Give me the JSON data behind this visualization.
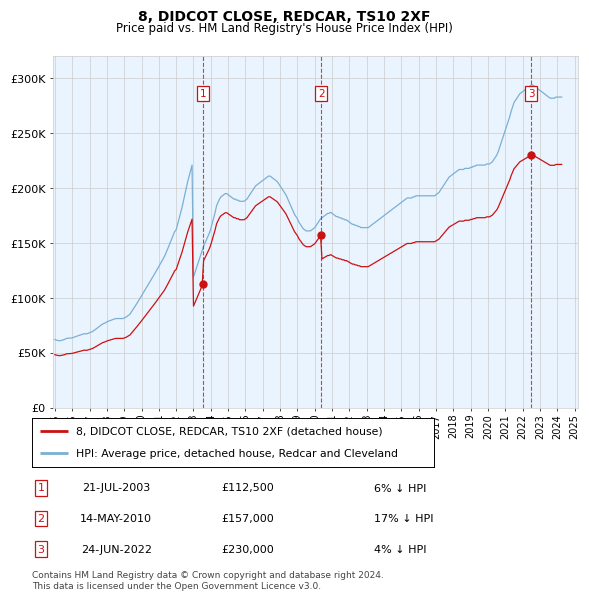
{
  "title": "8, DIDCOT CLOSE, REDCAR, TS10 2XF",
  "subtitle": "Price paid vs. HM Land Registry's House Price Index (HPI)",
  "ylim": [
    0,
    320000
  ],
  "yticks": [
    0,
    50000,
    100000,
    150000,
    200000,
    250000,
    300000
  ],
  "ytick_labels": [
    "£0",
    "£50K",
    "£100K",
    "£150K",
    "£200K",
    "£250K",
    "£300K"
  ],
  "hpi_color": "#7bafd4",
  "price_color": "#cc1111",
  "bg_color": "#ffffff",
  "grid_color": "#cccccc",
  "shade_color": "#ddeeff",
  "transactions": [
    {
      "label": "1",
      "date_x": 2003.538,
      "price": 112500,
      "text": "21-JUL-2003",
      "amount": "£112,500",
      "pct": "6% ↓ HPI"
    },
    {
      "label": "2",
      "date_x": 2010.37,
      "price": 157000,
      "text": "14-MAY-2010",
      "amount": "£157,000",
      "pct": "17% ↓ HPI"
    },
    {
      "label": "3",
      "date_x": 2022.479,
      "price": 230000,
      "text": "24-JUN-2022",
      "amount": "£230,000",
      "pct": "4% ↓ HPI"
    }
  ],
  "legend_entries": [
    {
      "label": "8, DIDCOT CLOSE, REDCAR, TS10 2XF (detached house)",
      "color": "#cc1111"
    },
    {
      "label": "HPI: Average price, detached house, Redcar and Cleveland",
      "color": "#7bafd4"
    }
  ],
  "footer": "Contains HM Land Registry data © Crown copyright and database right 2024.\nThis data is licensed under the Open Government Licence v3.0.",
  "xlim": [
    1994.9,
    2025.2
  ],
  "xtick_years": [
    1995,
    1996,
    1997,
    1998,
    1999,
    2000,
    2001,
    2002,
    2003,
    2004,
    2005,
    2006,
    2007,
    2008,
    2009,
    2010,
    2011,
    2012,
    2013,
    2014,
    2015,
    2016,
    2017,
    2018,
    2019,
    2020,
    2021,
    2022,
    2023,
    2024,
    2025
  ],
  "hpi_data_monthly": {
    "start_year": 1995.0,
    "step": 0.08333,
    "values": [
      62000,
      61500,
      61200,
      60800,
      61000,
      61300,
      61800,
      62200,
      63000,
      63100,
      63200,
      63300,
      63500,
      64000,
      64600,
      65100,
      65400,
      65800,
      66300,
      66700,
      67200,
      67300,
      67100,
      67600,
      68100,
      68700,
      69200,
      70100,
      71100,
      72100,
      73200,
      74200,
      75200,
      76100,
      76700,
      77200,
      78100,
      78600,
      79100,
      79600,
      80100,
      80600,
      81100,
      81100,
      81100,
      81100,
      81100,
      81100,
      81600,
      82100,
      83100,
      84100,
      85100,
      87100,
      89100,
      91100,
      93200,
      95300,
      97400,
      99600,
      101800,
      103900,
      106100,
      108300,
      110500,
      112700,
      114900,
      117100,
      119400,
      121600,
      123900,
      126200,
      128500,
      130900,
      133200,
      135600,
      138000,
      141000,
      144200,
      147400,
      150700,
      153900,
      157200,
      160500,
      162000,
      167000,
      172000,
      177000,
      182000,
      188000,
      194000,
      200000,
      206000,
      211000,
      216000,
      221000,
      119000,
      123000,
      127000,
      131000,
      135000,
      139000,
      143000,
      147000,
      150000,
      153000,
      156000,
      159000,
      163000,
      168000,
      173000,
      178000,
      184000,
      187000,
      190000,
      192000,
      193000,
      194000,
      195000,
      195000,
      194000,
      193000,
      192000,
      191000,
      190000,
      190000,
      189000,
      189000,
      188000,
      188000,
      188000,
      188000,
      189000,
      190000,
      192000,
      194000,
      196000,
      198000,
      200000,
      202000,
      203000,
      204000,
      205000,
      206000,
      207000,
      208000,
      209000,
      210000,
      211000,
      211000,
      210000,
      209000,
      208000,
      207000,
      206000,
      204000,
      202000,
      200000,
      198000,
      196000,
      194000,
      191000,
      188000,
      185000,
      182000,
      179000,
      176000,
      174000,
      172000,
      169000,
      167000,
      165000,
      163000,
      162000,
      161000,
      161000,
      161000,
      161000,
      162000,
      163000,
      164000,
      166000,
      168000,
      170000,
      172000,
      173000,
      174000,
      175000,
      176000,
      177000,
      177000,
      178000,
      177000,
      176000,
      175000,
      174000,
      174000,
      173000,
      173000,
      172000,
      172000,
      171000,
      171000,
      170000,
      169000,
      168000,
      167000,
      167000,
      166000,
      166000,
      165000,
      165000,
      164000,
      164000,
      164000,
      164000,
      164000,
      164000,
      165000,
      166000,
      167000,
      168000,
      169000,
      170000,
      171000,
      172000,
      173000,
      174000,
      175000,
      176000,
      177000,
      178000,
      179000,
      180000,
      181000,
      182000,
      183000,
      184000,
      185000,
      186000,
      187000,
      188000,
      189000,
      190000,
      191000,
      191000,
      191000,
      191000,
      192000,
      192000,
      193000,
      193000,
      193000,
      193000,
      193000,
      193000,
      193000,
      193000,
      193000,
      193000,
      193000,
      193000,
      193000,
      193000,
      194000,
      195000,
      196000,
      198000,
      200000,
      202000,
      204000,
      206000,
      208000,
      210000,
      211000,
      212000,
      213000,
      214000,
      215000,
      216000,
      217000,
      217000,
      217000,
      217000,
      218000,
      218000,
      218000,
      218000,
      219000,
      219000,
      220000,
      220000,
      221000,
      221000,
      221000,
      221000,
      221000,
      221000,
      221000,
      222000,
      222000,
      222000,
      223000,
      224000,
      226000,
      228000,
      230000,
      233000,
      237000,
      241000,
      245000,
      249000,
      253000,
      257000,
      261000,
      265000,
      270000,
      274000,
      278000,
      280000,
      282000,
      284000,
      286000,
      287000,
      288000,
      289000,
      290000,
      291000,
      292000,
      293000,
      294000,
      294000,
      293000,
      292000,
      291000,
      290000,
      289000,
      288000,
      287000,
      286000,
      285000,
      284000,
      283000,
      282000,
      282000,
      282000,
      282000,
      283000,
      283000,
      283000,
      283000,
      283000
    ]
  }
}
